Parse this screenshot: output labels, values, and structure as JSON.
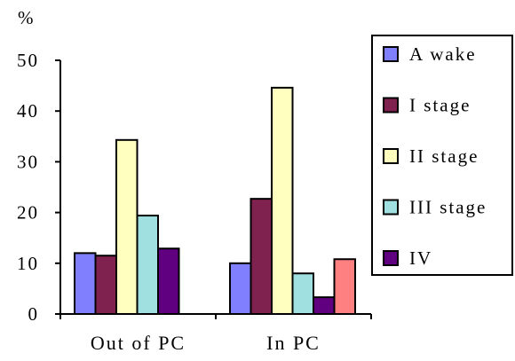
{
  "chart_data": {
    "type": "bar",
    "ylabel": "%",
    "ylim": [
      0,
      50
    ],
    "yticks": [
      0,
      10,
      20,
      30,
      40,
      50
    ],
    "grid": false,
    "legend_position": "right",
    "categories": [
      "Out of PC",
      "In PC"
    ],
    "series": [
      {
        "name": "A wake",
        "color": "#8080ff",
        "values": [
          12,
          10
        ]
      },
      {
        "name": "I stage",
        "color": "#7f2250",
        "values": [
          11.5,
          22.7
        ]
      },
      {
        "name": "II stage",
        "color": "#ffffc0",
        "values": [
          34.3,
          44.6
        ]
      },
      {
        "name": "III stage",
        "color": "#a0e0e0",
        "values": [
          19.4,
          8
        ]
      },
      {
        "name": "IV",
        "color": "#600080",
        "values": [
          12.9,
          3.3
        ]
      },
      {
        "name": "",
        "color": "#ff8080",
        "values": [
          null,
          10.8
        ]
      }
    ]
  }
}
